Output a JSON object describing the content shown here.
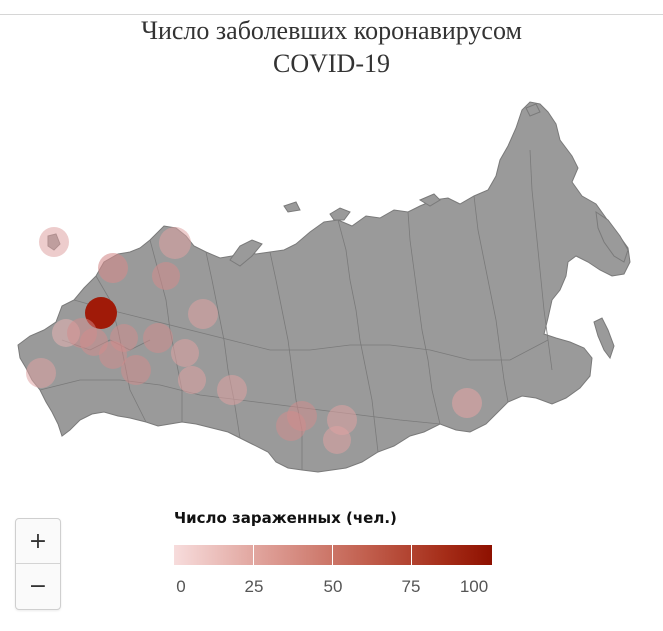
{
  "title": {
    "line1": "Число заболевших коронавирусом",
    "line2": "COVID-19"
  },
  "zoom": {
    "in_label": "+",
    "out_label": "−"
  },
  "legend": {
    "title": "Число зараженных (чел.)",
    "ticks": [
      "0",
      "25",
      "50",
      "75",
      "100"
    ],
    "min": 0,
    "max": 100,
    "color_low": "#f7dcdc",
    "color_high": "#8e1000"
  },
  "map": {
    "land_color": "#9a9a9a",
    "border_color": "#7a7a7a",
    "marker_color": "#8e1000"
  }
}
